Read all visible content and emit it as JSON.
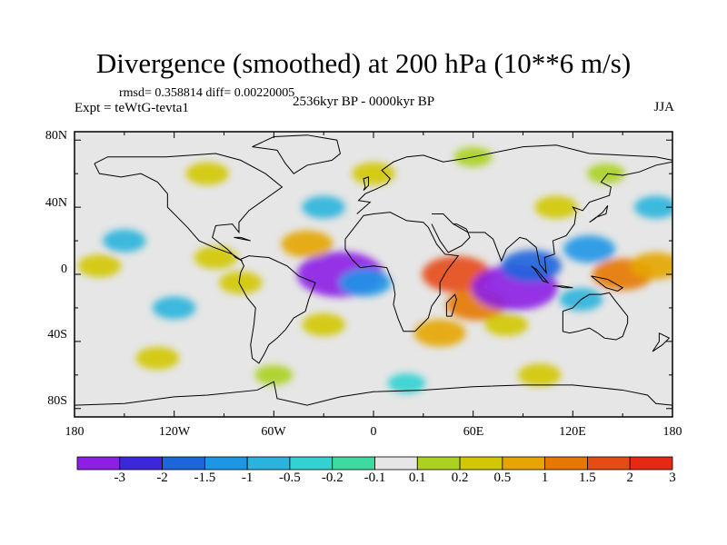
{
  "title": "Divergence (smoothed) at 200 hPa (10**6 m/s)",
  "stats": "rmsd= 0.358814 diff= 0.00220005",
  "experiment": "Expt = teWtG-tevta1",
  "period": "2536kyr BP - 0000kyr BP",
  "season": "JJA",
  "axes": {
    "lat_labels": [
      {
        "text": "80N",
        "lat": 80
      },
      {
        "text": "40N",
        "lat": 40
      },
      {
        "text": "0",
        "lat": 0
      },
      {
        "text": "40S",
        "lat": -40
      },
      {
        "text": "80S",
        "lat": -80
      }
    ],
    "lon_labels": [
      {
        "text": "180",
        "lon": -180
      },
      {
        "text": "120W",
        "lon": -120
      },
      {
        "text": "60W",
        "lon": -60
      },
      {
        "text": "0",
        "lon": 0
      },
      {
        "text": "60E",
        "lon": 60
      },
      {
        "text": "120E",
        "lon": 120
      },
      {
        "text": "180",
        "lon": 180
      }
    ]
  },
  "colorbar": {
    "colors": [
      "#8c1ee6",
      "#3c28dc",
      "#1e64dc",
      "#1e96e6",
      "#28b4dc",
      "#32d2d2",
      "#3cdca0",
      "#e6e6e6",
      "#aad21e",
      "#d2c800",
      "#e6a500",
      "#e67800",
      "#e64b14",
      "#e62814"
    ],
    "labels": [
      "-3",
      "-2",
      "-1.5",
      "-1",
      "-0.5",
      "-0.2",
      "-0.1",
      "0.1",
      "0.2",
      "0.5",
      "1",
      "1.5",
      "2",
      "3"
    ]
  },
  "field_anomalies": [
    {
      "lon": -20,
      "lat": 0,
      "level": -3
    },
    {
      "lon": -5,
      "lat": -5,
      "level": -1
    },
    {
      "lon": -40,
      "lat": 18,
      "level": 1
    },
    {
      "lon": -95,
      "lat": 10,
      "level": 0.5
    },
    {
      "lon": -80,
      "lat": -5,
      "level": 0.5
    },
    {
      "lon": 50,
      "lat": 0,
      "level": 2
    },
    {
      "lon": 62,
      "lat": -18,
      "level": 1.5
    },
    {
      "lon": 85,
      "lat": -8,
      "level": -3
    },
    {
      "lon": 95,
      "lat": 5,
      "level": -1.5
    },
    {
      "lon": 80,
      "lat": -30,
      "level": 0.5
    },
    {
      "lon": 150,
      "lat": 0,
      "level": 1.5
    },
    {
      "lon": 170,
      "lat": 5,
      "level": 1
    },
    {
      "lon": 130,
      "lat": 15,
      "level": -1
    },
    {
      "lon": 125,
      "lat": -15,
      "level": -0.5
    },
    {
      "lon": -150,
      "lat": 20,
      "level": -0.5
    },
    {
      "lon": -165,
      "lat": 5,
      "level": 0.5
    },
    {
      "lon": -120,
      "lat": -20,
      "level": -0.5
    },
    {
      "lon": 40,
      "lat": -35,
      "level": 1
    },
    {
      "lon": -30,
      "lat": -30,
      "level": 0.5
    },
    {
      "lon": 0,
      "lat": 60,
      "level": 0.5
    },
    {
      "lon": 60,
      "lat": 70,
      "level": 0.2
    },
    {
      "lon": -100,
      "lat": 60,
      "level": 0.5
    },
    {
      "lon": 140,
      "lat": 60,
      "level": 0.2
    },
    {
      "lon": 110,
      "lat": 40,
      "level": 0.5
    },
    {
      "lon": -30,
      "lat": 40,
      "level": -0.5
    },
    {
      "lon": 170,
      "lat": 40,
      "level": -0.5
    },
    {
      "lon": -60,
      "lat": -60,
      "level": 0.2
    },
    {
      "lon": 100,
      "lat": -60,
      "level": 0.5
    },
    {
      "lon": -130,
      "lat": -50,
      "level": 0.5
    },
    {
      "lon": 20,
      "lat": -65,
      "level": -0.2
    }
  ]
}
